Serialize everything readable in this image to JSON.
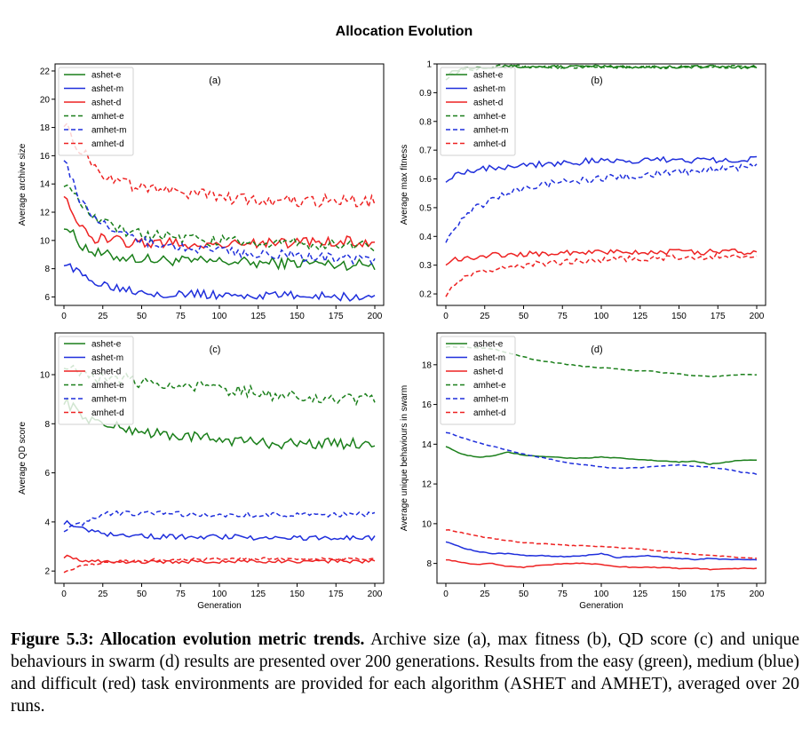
{
  "figure_title": "Allocation Evolution",
  "caption": {
    "lead": "Figure 5.3: Allocation evolution metric trends.",
    "body": " Archive size (a), max fitness (b), QD score (c) and unique behaviours in swarm (d) results are presented over 200 generations. Results from the easy (green), medium (blue) and difficult (red) task environments are provided for each algorithm (ASHET and AMHET), averaged over 20 runs."
  },
  "colors": {
    "green": "#1a7f1a",
    "blue": "#1f2fdc",
    "red": "#ee2222"
  },
  "chart_data": [
    {
      "type": "line",
      "panel": "(a)",
      "ylabel": "Average archive size",
      "xlabel": "",
      "xlim": [
        0,
        200
      ],
      "ylim": [
        5.4,
        22.5
      ],
      "xticks": [
        0,
        25,
        50,
        75,
        100,
        125,
        150,
        175,
        200
      ],
      "yticks": [
        6,
        8,
        10,
        12,
        14,
        16,
        18,
        20,
        22
      ],
      "legend_position": "top-left",
      "x": [
        0,
        10,
        20,
        30,
        40,
        50,
        60,
        70,
        80,
        90,
        100,
        110,
        120,
        130,
        140,
        150,
        160,
        170,
        180,
        190,
        200
      ],
      "series": [
        {
          "name": "ashet-e",
          "style": "solid",
          "color": "green",
          "noise": 0.4,
          "values": [
            11.2,
            9.8,
            9.1,
            8.9,
            8.8,
            8.7,
            8.6,
            8.6,
            8.5,
            8.5,
            8.5,
            8.5,
            8.4,
            8.4,
            8.4,
            8.4,
            8.4,
            8.3,
            8.3,
            8.3,
            8.3
          ]
        },
        {
          "name": "ashet-m",
          "style": "solid",
          "color": "blue",
          "noise": 0.3,
          "values": [
            8.5,
            7.6,
            7.1,
            6.8,
            6.6,
            6.4,
            6.3,
            6.2,
            6.2,
            6.2,
            6.1,
            6.1,
            6.1,
            6.1,
            6.1,
            6.1,
            6.1,
            6.1,
            6.0,
            6.0,
            6.0
          ]
        },
        {
          "name": "ashet-d",
          "style": "solid",
          "color": "red",
          "noise": 0.4,
          "values": [
            13.5,
            10.8,
            10.2,
            10.0,
            9.9,
            9.8,
            9.8,
            9.8,
            9.7,
            9.7,
            9.8,
            9.8,
            9.8,
            9.8,
            9.8,
            9.8,
            9.9,
            9.9,
            9.9,
            9.9,
            10.0
          ]
        },
        {
          "name": "amhet-e",
          "style": "dashed",
          "color": "green",
          "noise": 0.4,
          "values": [
            14.2,
            12.6,
            11.5,
            11.0,
            10.7,
            10.5,
            10.3,
            10.2,
            10.1,
            10.0,
            10.0,
            9.9,
            9.9,
            9.8,
            9.8,
            9.8,
            9.7,
            9.7,
            9.7,
            9.7,
            9.6
          ]
        },
        {
          "name": "amhet-m",
          "style": "dashed",
          "color": "blue",
          "noise": 0.35,
          "values": [
            16.0,
            12.8,
            11.5,
            10.8,
            10.3,
            10.0,
            9.8,
            9.6,
            9.5,
            9.4,
            9.3,
            9.2,
            9.1,
            9.0,
            9.0,
            8.9,
            8.8,
            8.8,
            8.7,
            8.7,
            8.6
          ]
        },
        {
          "name": "amhet-d",
          "style": "dashed",
          "color": "red",
          "noise": 0.45,
          "values": [
            18.5,
            16.5,
            15.2,
            14.4,
            14.0,
            13.7,
            13.5,
            13.4,
            13.3,
            13.2,
            13.1,
            13.0,
            12.9,
            12.9,
            12.9,
            12.8,
            12.8,
            12.8,
            12.8,
            12.8,
            12.7
          ]
        }
      ]
    },
    {
      "type": "line",
      "panel": "(b)",
      "ylabel": "Average max fitness",
      "xlabel": "",
      "xlim": [
        0,
        200
      ],
      "ylim": [
        0.16,
        1.0
      ],
      "xticks": [
        0,
        25,
        50,
        75,
        100,
        125,
        150,
        175,
        200
      ],
      "yticks": [
        0.2,
        0.3,
        0.4,
        0.5,
        0.6,
        0.7,
        0.8,
        0.9,
        1.0
      ],
      "legend_position": "top-left",
      "x": [
        0,
        10,
        20,
        30,
        40,
        50,
        60,
        70,
        80,
        90,
        100,
        110,
        120,
        130,
        140,
        150,
        160,
        170,
        180,
        190,
        200
      ],
      "series": [
        {
          "name": "ashet-e",
          "style": "solid",
          "color": "green",
          "noise": 0.006,
          "values": [
            0.965,
            0.985,
            0.99,
            0.99,
            0.99,
            0.99,
            0.99,
            0.99,
            0.99,
            0.99,
            0.99,
            0.99,
            0.99,
            0.99,
            0.99,
            0.99,
            0.99,
            0.99,
            0.99,
            0.99,
            0.99
          ]
        },
        {
          "name": "ashet-m",
          "style": "solid",
          "color": "blue",
          "noise": 0.012,
          "values": [
            0.6,
            0.625,
            0.635,
            0.64,
            0.645,
            0.65,
            0.652,
            0.655,
            0.657,
            0.66,
            0.66,
            0.662,
            0.663,
            0.665,
            0.665,
            0.667,
            0.667,
            0.668,
            0.668,
            0.669,
            0.67
          ]
        },
        {
          "name": "ashet-d",
          "style": "solid",
          "color": "red",
          "noise": 0.01,
          "values": [
            0.31,
            0.325,
            0.33,
            0.335,
            0.337,
            0.34,
            0.34,
            0.342,
            0.343,
            0.343,
            0.344,
            0.344,
            0.345,
            0.345,
            0.345,
            0.345,
            0.345,
            0.346,
            0.346,
            0.346,
            0.347
          ]
        },
        {
          "name": "amhet-e",
          "style": "dashed",
          "color": "green",
          "noise": 0.006,
          "values": [
            0.95,
            0.975,
            0.985,
            0.99,
            0.99,
            0.99,
            0.99,
            0.99,
            0.99,
            0.99,
            0.99,
            0.99,
            0.99,
            0.99,
            0.99,
            0.99,
            0.99,
            0.99,
            0.99,
            0.99,
            0.99
          ]
        },
        {
          "name": "amhet-m",
          "style": "dashed",
          "color": "blue",
          "noise": 0.012,
          "values": [
            0.39,
            0.46,
            0.5,
            0.53,
            0.55,
            0.565,
            0.575,
            0.585,
            0.59,
            0.595,
            0.6,
            0.605,
            0.61,
            0.615,
            0.62,
            0.625,
            0.628,
            0.632,
            0.636,
            0.64,
            0.645
          ]
        },
        {
          "name": "amhet-d",
          "style": "dashed",
          "color": "red",
          "noise": 0.01,
          "values": [
            0.2,
            0.25,
            0.27,
            0.285,
            0.295,
            0.3,
            0.305,
            0.31,
            0.313,
            0.316,
            0.318,
            0.32,
            0.322,
            0.324,
            0.326,
            0.327,
            0.328,
            0.33,
            0.331,
            0.332,
            0.333
          ]
        }
      ]
    },
    {
      "type": "line",
      "panel": "(c)",
      "ylabel": "Average QD score",
      "xlabel": "Generation",
      "xlim": [
        0,
        200
      ],
      "ylim": [
        1.5,
        11.7
      ],
      "xticks": [
        0,
        25,
        50,
        75,
        100,
        125,
        150,
        175,
        200
      ],
      "yticks": [
        2,
        4,
        6,
        8,
        10
      ],
      "legend_position": "top-left",
      "x": [
        0,
        10,
        20,
        30,
        40,
        50,
        60,
        70,
        80,
        90,
        100,
        110,
        120,
        130,
        140,
        150,
        160,
        170,
        180,
        190,
        200
      ],
      "series": [
        {
          "name": "ashet-e",
          "style": "solid",
          "color": "green",
          "noise": 0.22,
          "values": [
            9.0,
            8.4,
            8.1,
            7.9,
            7.8,
            7.7,
            7.6,
            7.5,
            7.5,
            7.4,
            7.4,
            7.3,
            7.3,
            7.2,
            7.2,
            7.2,
            7.2,
            7.2,
            7.2,
            7.2,
            7.2
          ]
        },
        {
          "name": "ashet-m",
          "style": "solid",
          "color": "blue",
          "noise": 0.1,
          "values": [
            4.0,
            3.8,
            3.6,
            3.5,
            3.5,
            3.45,
            3.4,
            3.4,
            3.4,
            3.4,
            3.4,
            3.4,
            3.35,
            3.35,
            3.35,
            3.35,
            3.35,
            3.35,
            3.35,
            3.35,
            3.35
          ]
        },
        {
          "name": "ashet-d",
          "style": "solid",
          "color": "red",
          "noise": 0.07,
          "values": [
            2.6,
            2.45,
            2.4,
            2.4,
            2.38,
            2.38,
            2.38,
            2.38,
            2.38,
            2.38,
            2.38,
            2.4,
            2.4,
            2.4,
            2.4,
            2.4,
            2.4,
            2.4,
            2.4,
            2.4,
            2.4
          ]
        },
        {
          "name": "amhet-e",
          "style": "dashed",
          "color": "green",
          "noise": 0.25,
          "values": [
            10.5,
            10.2,
            9.9,
            9.8,
            9.8,
            9.7,
            9.6,
            9.6,
            9.5,
            9.5,
            9.4,
            9.3,
            9.3,
            9.2,
            9.2,
            9.1,
            9.1,
            9.0,
            9.0,
            9.0,
            9.0
          ]
        },
        {
          "name": "amhet-m",
          "style": "dashed",
          "color": "blue",
          "noise": 0.1,
          "values": [
            3.7,
            3.9,
            4.2,
            4.35,
            4.35,
            4.35,
            4.35,
            4.35,
            4.3,
            4.3,
            4.3,
            4.3,
            4.3,
            4.3,
            4.3,
            4.3,
            4.3,
            4.3,
            4.3,
            4.3,
            4.3
          ]
        },
        {
          "name": "amhet-d",
          "style": "dashed",
          "color": "red",
          "noise": 0.06,
          "values": [
            2.0,
            2.2,
            2.3,
            2.35,
            2.4,
            2.42,
            2.45,
            2.46,
            2.48,
            2.48,
            2.5,
            2.5,
            2.5,
            2.5,
            2.5,
            2.5,
            2.5,
            2.5,
            2.5,
            2.5,
            2.5
          ]
        }
      ]
    },
    {
      "type": "line",
      "panel": "(d)",
      "ylabel": "Average unique behaviours in swarm",
      "xlabel": "Generation",
      "xlim": [
        0,
        200
      ],
      "ylim": [
        7.0,
        19.6
      ],
      "xticks": [
        0,
        25,
        50,
        75,
        100,
        125,
        150,
        175,
        200
      ],
      "yticks": [
        8,
        10,
        12,
        14,
        16,
        18
      ],
      "legend_position": "top-left",
      "x": [
        0,
        10,
        20,
        30,
        40,
        50,
        60,
        70,
        80,
        90,
        100,
        110,
        120,
        130,
        140,
        150,
        160,
        170,
        180,
        190,
        200
      ],
      "series": [
        {
          "name": "ashet-e",
          "style": "solid",
          "color": "green",
          "noise": 0.02,
          "values": [
            13.9,
            13.5,
            13.35,
            13.4,
            13.6,
            13.45,
            13.4,
            13.35,
            13.3,
            13.3,
            13.35,
            13.3,
            13.25,
            13.2,
            13.15,
            13.1,
            13.15,
            13.0,
            13.1,
            13.2,
            13.2
          ]
        },
        {
          "name": "ashet-m",
          "style": "solid",
          "color": "blue",
          "noise": 0.02,
          "values": [
            9.1,
            8.8,
            8.6,
            8.5,
            8.5,
            8.4,
            8.4,
            8.35,
            8.35,
            8.4,
            8.5,
            8.3,
            8.35,
            8.4,
            8.3,
            8.25,
            8.2,
            8.25,
            8.2,
            8.2,
            8.2
          ]
        },
        {
          "name": "ashet-d",
          "style": "solid",
          "color": "red",
          "noise": 0.02,
          "values": [
            8.2,
            8.05,
            7.95,
            8.0,
            7.85,
            7.8,
            7.9,
            7.95,
            8.0,
            8.0,
            7.95,
            7.85,
            7.8,
            7.8,
            7.8,
            7.75,
            7.75,
            7.7,
            7.75,
            7.75,
            7.75
          ]
        },
        {
          "name": "amhet-e",
          "style": "dashed",
          "color": "green",
          "noise": 0.02,
          "values": [
            18.9,
            18.9,
            18.85,
            18.8,
            18.6,
            18.4,
            18.2,
            18.1,
            18.0,
            17.9,
            17.85,
            17.8,
            17.7,
            17.7,
            17.6,
            17.55,
            17.45,
            17.4,
            17.45,
            17.5,
            17.5
          ]
        },
        {
          "name": "amhet-m",
          "style": "dashed",
          "color": "blue",
          "noise": 0.02,
          "values": [
            14.6,
            14.35,
            14.1,
            13.9,
            13.7,
            13.5,
            13.35,
            13.2,
            13.05,
            12.95,
            12.85,
            12.8,
            12.8,
            12.85,
            12.9,
            12.95,
            12.9,
            12.85,
            12.75,
            12.6,
            12.5
          ]
        },
        {
          "name": "amhet-d",
          "style": "dashed",
          "color": "red",
          "noise": 0.02,
          "values": [
            9.7,
            9.55,
            9.4,
            9.25,
            9.15,
            9.05,
            9.0,
            8.95,
            8.9,
            8.9,
            8.85,
            8.8,
            8.75,
            8.7,
            8.6,
            8.55,
            8.45,
            8.4,
            8.35,
            8.3,
            8.25
          ]
        }
      ]
    }
  ]
}
